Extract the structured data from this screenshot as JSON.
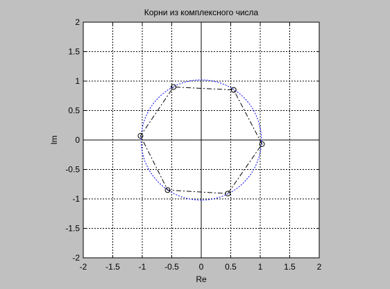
{
  "window": {
    "background": "#c0c0c0"
  },
  "chart_data": {
    "type": "scatter",
    "title": "Корни из комплексного числа",
    "xlabel": "Re",
    "ylabel": "Im",
    "xlim": [
      -2,
      2
    ],
    "ylim": [
      -2,
      2
    ],
    "xticks": [
      -2,
      -1.5,
      -1,
      -0.5,
      0,
      0.5,
      1,
      1.5,
      2
    ],
    "yticks": [
      -2,
      -1.5,
      -1,
      -0.5,
      0,
      0.5,
      1,
      1.5,
      2
    ],
    "xtick_labels": [
      "-2",
      "-1.5",
      "-1",
      "-0.5",
      "0",
      "0.5",
      "1",
      "1.5",
      "2"
    ],
    "ytick_labels": [
      "-2",
      "-1.5",
      "-1",
      "-0.5",
      "0",
      "0.5",
      "1",
      "1.5",
      "2"
    ],
    "grid": true,
    "grid_style": "dotted",
    "zero_axes": true,
    "series": [
      {
        "marker": "circle",
        "line_style": "dash-dot",
        "color": "#000000",
        "closed": true,
        "points": [
          {
            "x": 1.03,
            "y": -0.07
          },
          {
            "x": 0.55,
            "y": 0.85
          },
          {
            "x": -0.47,
            "y": 0.9
          },
          {
            "x": -1.03,
            "y": 0.07
          },
          {
            "x": -0.57,
            "y": -0.85
          },
          {
            "x": 0.45,
            "y": -0.91
          }
        ]
      },
      {
        "shape": "circle",
        "center": [
          0,
          0
        ],
        "radius": 1.02,
        "line_style": "dotted",
        "color": "#0000ff"
      }
    ]
  }
}
